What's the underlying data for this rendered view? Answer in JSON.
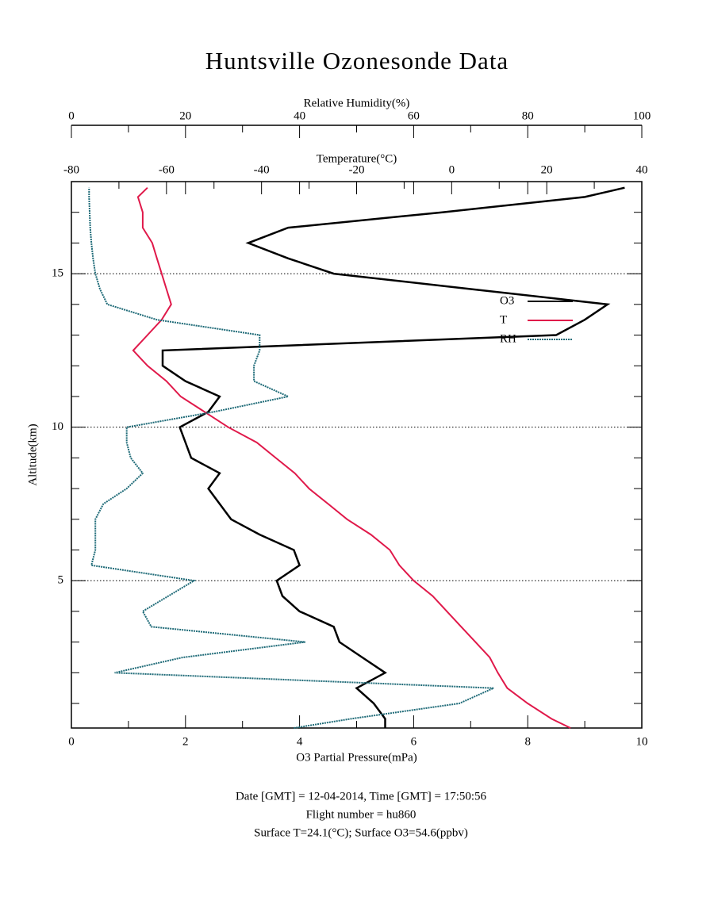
{
  "chart_data": {
    "type": "line",
    "title": "Huntsville Ozonesonde Data",
    "ylabel": "Altitude(km)",
    "ylim": [
      0.2,
      18
    ],
    "yticks": [
      5,
      10,
      15
    ],
    "yminorticks": [
      1,
      2,
      3,
      4,
      6,
      7,
      8,
      9,
      11,
      12,
      13,
      14,
      16,
      17
    ],
    "grid": true,
    "xlabel": "O3 Partial Pressure(mPa)",
    "xlim": [
      0,
      10
    ],
    "xticks": [
      0,
      2,
      4,
      6,
      8,
      10
    ],
    "xminorticks": [
      1,
      3,
      5,
      7,
      9
    ],
    "x2label": "Temperature(°C)",
    "x2lim": [
      -80,
      40
    ],
    "x2ticks": [
      -80,
      -60,
      -40,
      -20,
      0,
      20,
      40
    ],
    "x2minorticks": [
      -70,
      -50,
      -30,
      -10,
      10,
      30
    ],
    "x3label": "Relative Humidity(%)",
    "x3lim": [
      0,
      100
    ],
    "x3ticks": [
      0,
      20,
      40,
      60,
      80,
      100
    ],
    "x3minorticks": [
      10,
      30,
      50,
      70,
      90
    ],
    "altitude": [
      0.2,
      0.5,
      1,
      1.5,
      2,
      2.5,
      3,
      3.5,
      4,
      4.5,
      5,
      5.5,
      6,
      6.5,
      7,
      7.5,
      8,
      8.5,
      9,
      9.5,
      10,
      10.5,
      11,
      11.5,
      12,
      12.5,
      13,
      13.5,
      14,
      14.5,
      15,
      15.5,
      16,
      16.5,
      17,
      17.5,
      17.8
    ],
    "series": [
      {
        "name": "O3",
        "color": "#000000",
        "axis": "x",
        "values": [
          5.5,
          5.5,
          5.3,
          5.0,
          5.5,
          5.1,
          4.7,
          4.6,
          4.0,
          3.7,
          3.6,
          4.0,
          3.9,
          3.3,
          2.8,
          2.6,
          2.4,
          2.6,
          2.1,
          2.0,
          1.9,
          2.4,
          2.6,
          2.0,
          1.6,
          1.6,
          8.5,
          9.0,
          9.4,
          7.0,
          4.6,
          3.8,
          3.1,
          3.8,
          6.5,
          9.0,
          9.7
        ]
      },
      {
        "name": "T",
        "color": "#e0194a",
        "axis": "x2",
        "values": [
          25,
          21,
          16,
          11.7,
          9.7,
          8,
          5,
          2,
          -1,
          -4,
          -8,
          -11,
          -13,
          -17,
          -22,
          -26,
          -30,
          -33,
          -37,
          -41,
          -47,
          -52,
          -57,
          -60,
          -64,
          -67,
          -64,
          -61,
          -59,
          -60,
          -61,
          -62,
          -63,
          -65,
          -65,
          -66,
          -64
        ]
      },
      {
        "name": "RH",
        "color": "#1f6b78",
        "axis": "x3",
        "values": [
          39,
          49,
          68,
          74,
          7.6,
          19.5,
          41,
          14,
          12.5,
          17,
          21.5,
          3.5,
          4.2,
          4.2,
          4.2,
          5.6,
          9.7,
          12.5,
          10.4,
          9.7,
          9.7,
          25,
          38,
          32,
          32,
          33,
          33,
          15,
          6.3,
          5,
          4.2,
          3.8,
          3.5,
          3.3,
          3.2,
          3.1,
          3.1
        ]
      }
    ],
    "footer": [
      "Date [GMT] = 12-04-2014,  Time [GMT] = 17:50:56",
      "Flight number = hu860",
      "Surface T=24.1(°C); Surface O3=54.6(ppbv)"
    ]
  }
}
